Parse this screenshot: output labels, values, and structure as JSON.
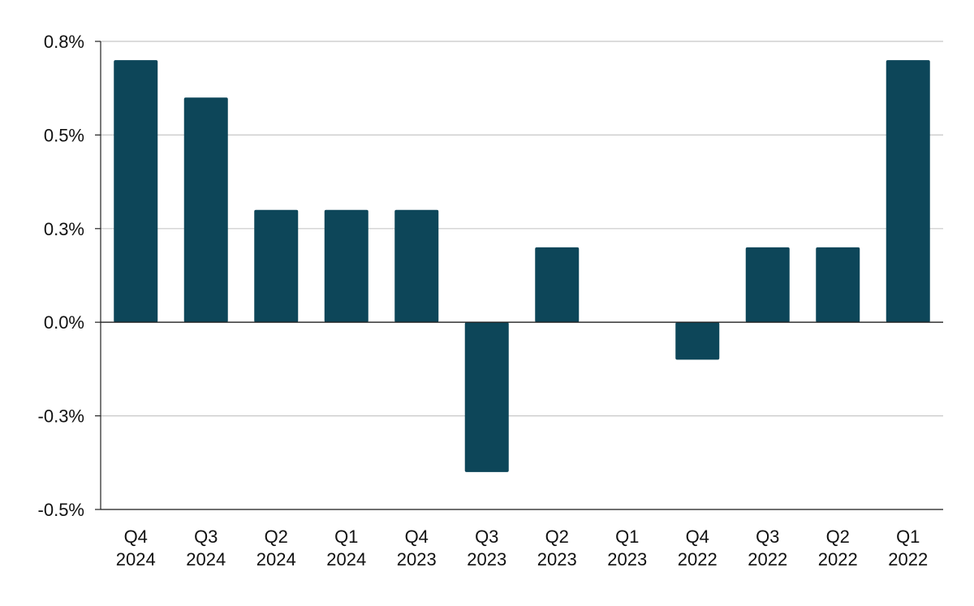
{
  "chart_data": {
    "type": "bar",
    "title": "",
    "xlabel": "",
    "ylabel": "",
    "categories": [
      [
        "Q4",
        "2024"
      ],
      [
        "Q3",
        "2024"
      ],
      [
        "Q2",
        "2024"
      ],
      [
        "Q1",
        "2024"
      ],
      [
        "Q4",
        "2023"
      ],
      [
        "Q3",
        "2023"
      ],
      [
        "Q2",
        "2023"
      ],
      [
        "Q1",
        "2023"
      ],
      [
        "Q4",
        "2022"
      ],
      [
        "Q3",
        "2022"
      ],
      [
        "Q2",
        "2022"
      ],
      [
        "Q1",
        "2022"
      ]
    ],
    "values": [
      0.7,
      0.6,
      0.3,
      0.3,
      0.3,
      -0.4,
      0.2,
      0.0,
      -0.1,
      0.2,
      0.2,
      0.7
    ],
    "ylim": [
      -0.5,
      0.75
    ],
    "yticks": [
      0.75,
      0.5,
      0.25,
      0.0,
      -0.25,
      -0.5
    ],
    "ytick_labels": [
      "0.8%",
      "0.5%",
      "0.3%",
      "0.0%",
      "-0.3%",
      "-0.5%"
    ],
    "grid": true,
    "bar_color": "#0d4659",
    "grid_color": "#c8c8c8"
  }
}
